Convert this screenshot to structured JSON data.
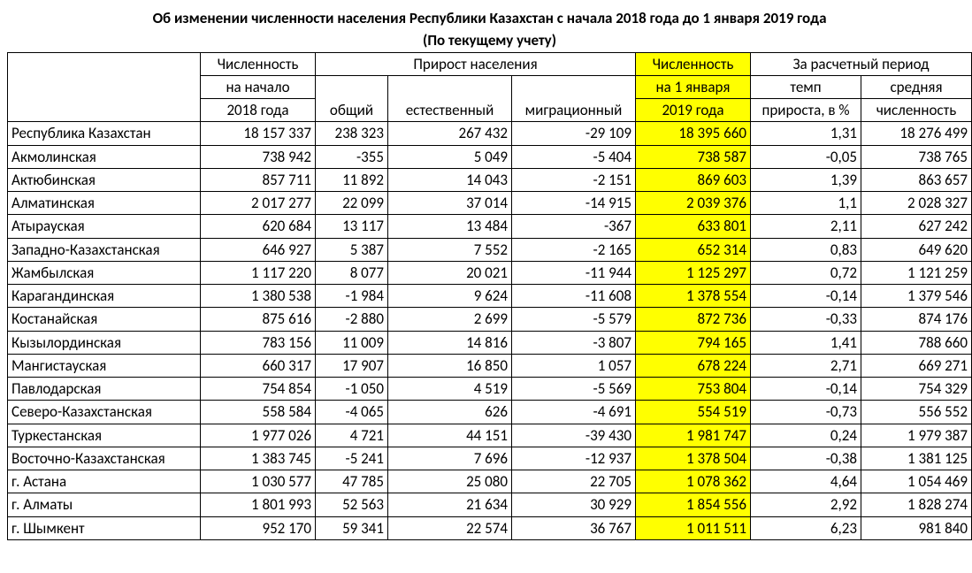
{
  "title_line1": "Об изменении численности населения Республики Казахстан с начала 2018 года до 1 января 2019 года",
  "title_line2": "(По текущему учету)",
  "headers": {
    "pop_start": [
      "Численность",
      "на начало",
      "2018 года"
    ],
    "growth_group": "Прирост населения",
    "growth_total": "общий",
    "growth_natural": "естественный",
    "growth_migration": "миграционный",
    "pop_2019": [
      "Численность",
      "на 1 января",
      "2019 года"
    ],
    "period_group": "За расчетный период",
    "rate": [
      "темп",
      "прироста, в %"
    ],
    "avg": [
      "средняя",
      "численность"
    ]
  },
  "columns": [
    "region",
    "pop_start",
    "total",
    "natural",
    "migration",
    "pop_2019",
    "rate",
    "avg"
  ],
  "highlight_col": "pop_2019",
  "highlight_color": "#ffff00",
  "rows": [
    {
      "region": "Республика Казахстан",
      "pop_start": "18 157 337",
      "total": "238 323",
      "natural": "267 432",
      "migration": "-29 109",
      "pop_2019": "18 395 660",
      "rate": "1,31",
      "avg": "18 276 499"
    },
    {
      "region": "Акмолинская",
      "pop_start": "738 942",
      "total": "-355",
      "natural": "5 049",
      "migration": "-5 404",
      "pop_2019": "738 587",
      "rate": "-0,05",
      "avg": "738 765"
    },
    {
      "region": "Актюбинская",
      "pop_start": "857 711",
      "total": "11 892",
      "natural": "14 043",
      "migration": "-2 151",
      "pop_2019": "869 603",
      "rate": "1,39",
      "avg": "863 657"
    },
    {
      "region": "Алматинская",
      "pop_start": "2 017 277",
      "total": "22 099",
      "natural": "37 014",
      "migration": "-14 915",
      "pop_2019": "2 039 376",
      "rate": "1,1",
      "avg": "2 028 327"
    },
    {
      "region": "Атырауская",
      "pop_start": "620 684",
      "total": "13 117",
      "natural": "13 484",
      "migration": "-367",
      "pop_2019": "633 801",
      "rate": "2,11",
      "avg": "627 242"
    },
    {
      "region": "Западно-Казахстанская",
      "pop_start": "646 927",
      "total": "5 387",
      "natural": "7 552",
      "migration": "-2 165",
      "pop_2019": "652 314",
      "rate": "0,83",
      "avg": "649 620"
    },
    {
      "region": "Жамбылская",
      "pop_start": "1 117 220",
      "total": "8 077",
      "natural": "20 021",
      "migration": "-11 944",
      "pop_2019": "1 125 297",
      "rate": "0,72",
      "avg": "1 121 259"
    },
    {
      "region": "Карагандинская",
      "pop_start": "1 380 538",
      "total": "-1 984",
      "natural": "9 624",
      "migration": "-11 608",
      "pop_2019": "1 378 554",
      "rate": "-0,14",
      "avg": "1 379 546"
    },
    {
      "region": "Костанайская",
      "pop_start": "875 616",
      "total": "-2 880",
      "natural": "2 699",
      "migration": "-5 579",
      "pop_2019": "872 736",
      "rate": "-0,33",
      "avg": "874 176"
    },
    {
      "region": "Кызылординская",
      "pop_start": "783 156",
      "total": "11 009",
      "natural": "14 816",
      "migration": "-3 807",
      "pop_2019": "794 165",
      "rate": "1,41",
      "avg": "788 660"
    },
    {
      "region": "Мангистауская",
      "pop_start": "660 317",
      "total": "17 907",
      "natural": "16 850",
      "migration": "1 057",
      "pop_2019": "678 224",
      "rate": "2,71",
      "avg": "669 271"
    },
    {
      "region": "Павлодарская",
      "pop_start": "754 854",
      "total": "-1 050",
      "natural": "4 519",
      "migration": "-5 569",
      "pop_2019": "753 804",
      "rate": "-0,14",
      "avg": "754 329"
    },
    {
      "region": "Северо-Казахстанская",
      "pop_start": "558 584",
      "total": "-4 065",
      "natural": "626",
      "migration": "-4 691",
      "pop_2019": "554 519",
      "rate": "-0,73",
      "avg": "556 552"
    },
    {
      "region": "Туркестанская",
      "pop_start": "1 977 026",
      "total": "4 721",
      "natural": "44 151",
      "migration": "-39 430",
      "pop_2019": "1 981 747",
      "rate": "0,24",
      "avg": "1 979 387"
    },
    {
      "region": "Восточно-Казахстанская",
      "pop_start": "1 383 745",
      "total": "-5 241",
      "natural": "7 696",
      "migration": "-12 937",
      "pop_2019": "1 378 504",
      "rate": "-0,38",
      "avg": "1 381 125"
    },
    {
      "region": "г. Астана",
      "pop_start": "1 030 577",
      "total": "47 785",
      "natural": "25 080",
      "migration": "22 705",
      "pop_2019": "1 078 362",
      "rate": "4,64",
      "avg": "1 054 469"
    },
    {
      "region": "г. Алматы",
      "pop_start": "1 801 993",
      "total": "52 563",
      "natural": "21 634",
      "migration": "30 929",
      "pop_2019": "1 854 556",
      "rate": "2,92",
      "avg": "1 828 274"
    },
    {
      "region": "г. Шымкент",
      "pop_start": "952 170",
      "total": "59 341",
      "natural": "22 574",
      "migration": "36 767",
      "pop_2019": "1 011 511",
      "rate": "6,23",
      "avg": "981 840"
    }
  ]
}
